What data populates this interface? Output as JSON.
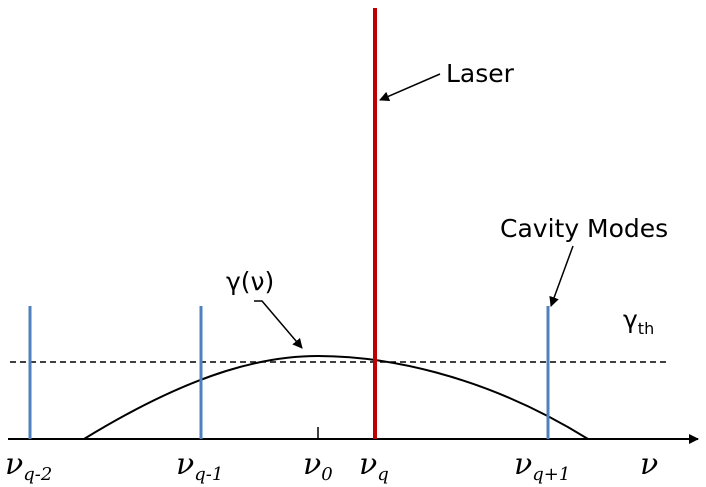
{
  "labels": {
    "laser": "Laser",
    "cavity_modes": "Cavity Modes",
    "gain": "γ(ν)",
    "threshold_symbol": "γ",
    "threshold_sub": "th",
    "axis_symbol": "ν"
  },
  "frequencies": [
    {
      "symbol": "ν",
      "sub": "q-2"
    },
    {
      "symbol": "ν",
      "sub": "q-1"
    },
    {
      "symbol": "ν",
      "sub": "0"
    },
    {
      "symbol": "ν",
      "sub": "q"
    },
    {
      "symbol": "ν",
      "sub": "q+1"
    }
  ],
  "colors": {
    "mode_line": "#4f81bd",
    "laser_line": "#c00000",
    "curve": "#000000",
    "axis": "#000000"
  }
}
